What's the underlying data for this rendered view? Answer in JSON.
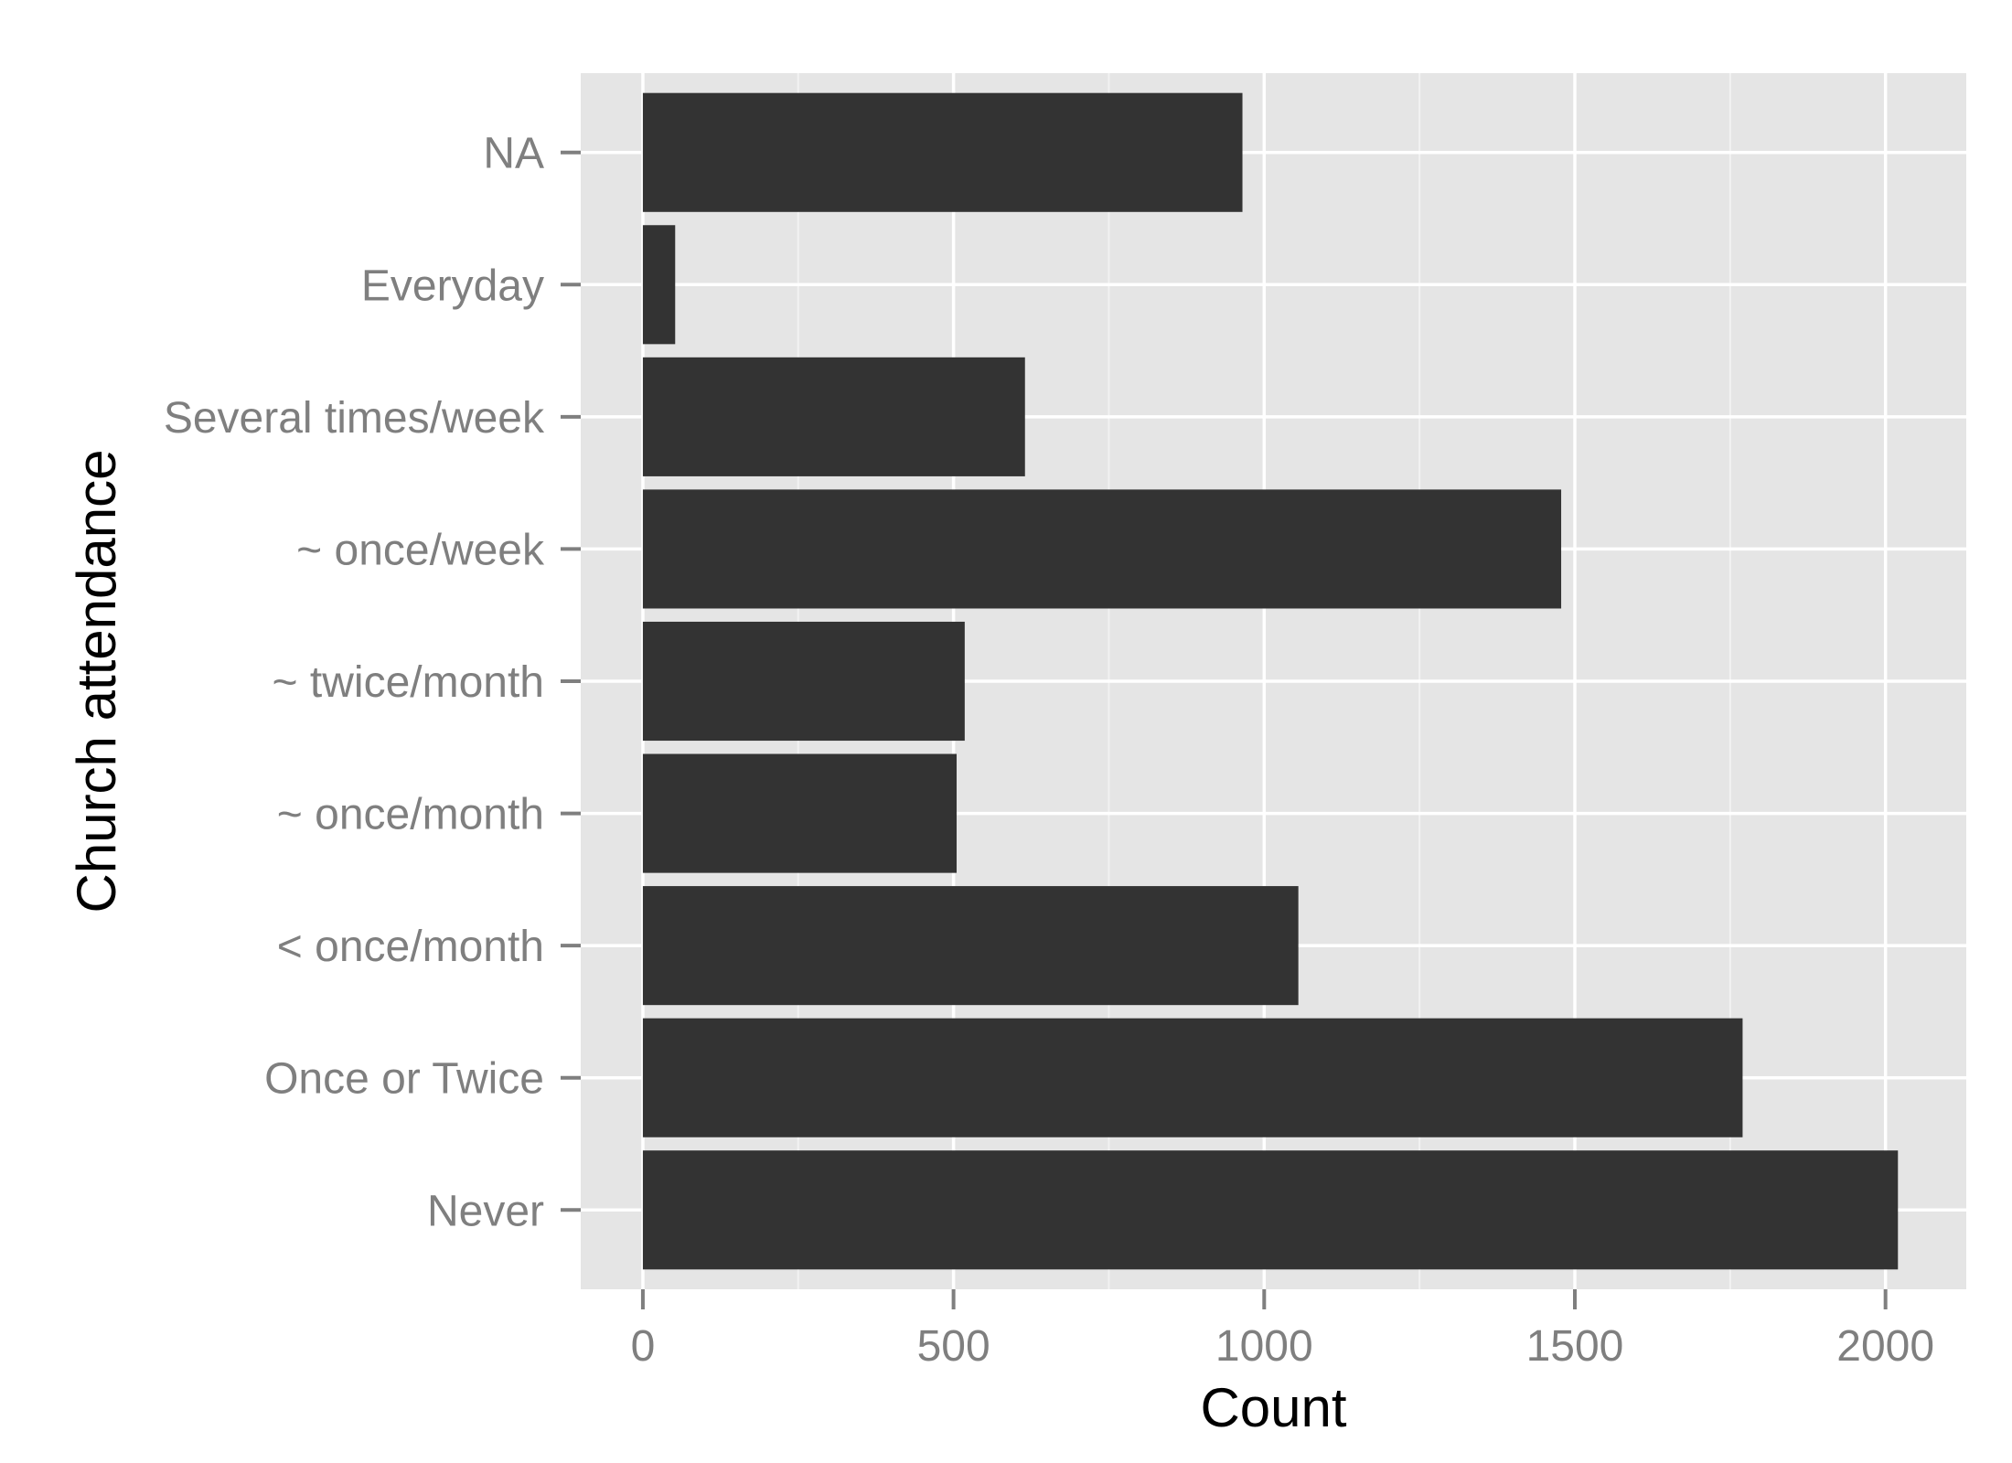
{
  "chart_data": {
    "type": "bar",
    "orientation": "horizontal",
    "categories": [
      "Never",
      "Once or Twice",
      "< once/month",
      "~ once/month",
      "~ twice/month",
      "~ once/week",
      "Several times/week",
      "Everyday",
      "NA"
    ],
    "values": [
      2020,
      1770,
      1055,
      505,
      518,
      1478,
      615,
      52,
      965
    ],
    "xlabel": "Count",
    "ylabel": "Church attendance",
    "xlim": [
      -100,
      2130
    ],
    "xticks": [
      0,
      500,
      1000,
      1500,
      2000
    ],
    "xtick_labels": [
      "0",
      "500",
      "1000",
      "1500",
      "2000"
    ],
    "grid": true,
    "colors": {
      "bar": "#333333",
      "panel": "#e5e5e5",
      "grid_major": "#ffffff",
      "grid_minor": "#f2f2f2",
      "tick_text": "#7f7f7f",
      "tick_mark": "#7f7f7f",
      "title_text": "#000000"
    }
  }
}
